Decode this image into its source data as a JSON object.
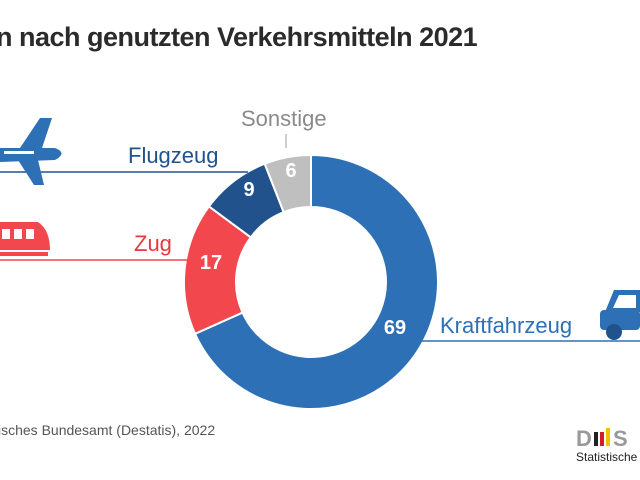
{
  "title": "n nach genutzten Verkehrsmitteln 2021",
  "source": "isches Bundesamt (Destatis), 2022",
  "logo_text": "Statistische",
  "chart_data": {
    "type": "pie",
    "donut": true,
    "legend": "none",
    "series": [
      {
        "name": "Kraftfahrzeug",
        "value": 69,
        "color": "#2e70b6",
        "label_color": "#2e70b6",
        "icon": "car-icon"
      },
      {
        "name": "Zug",
        "value": 17,
        "color": "#f2474c",
        "label_color": "#e8383e",
        "icon": "train-icon"
      },
      {
        "name": "Flugzeug",
        "value": 9,
        "color": "#22528c",
        "label_color": "#22528c",
        "icon": "airplane-icon"
      },
      {
        "name": "Sonstige",
        "value": 6,
        "color": "#bfbfbf",
        "label_color": "#8a8a8a",
        "icon": ""
      }
    ]
  }
}
